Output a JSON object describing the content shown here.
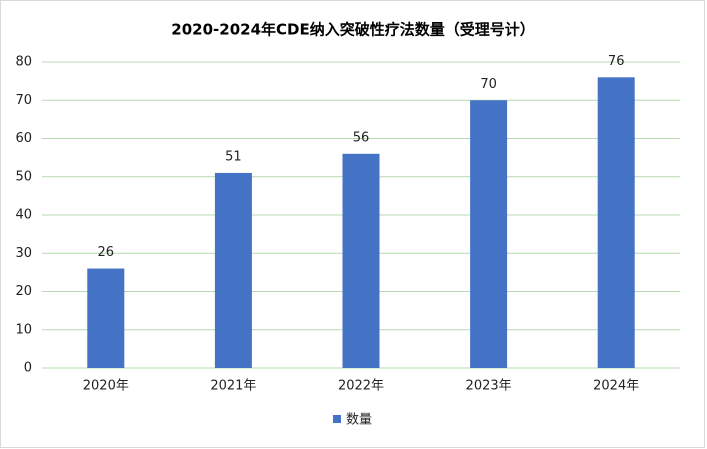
{
  "chart_data": {
    "type": "bar",
    "title": "2020-2024年CDE纳入突破性疗法数量（受理号计）",
    "categories": [
      "2020年",
      "2021年",
      "2022年",
      "2023年",
      "2024年"
    ],
    "series": [
      {
        "name": "数量",
        "color": "#4472c4",
        "values": [
          26,
          51,
          56,
          70,
          76
        ]
      }
    ],
    "ylim": [
      0,
      80
    ],
    "yticks": [
      0,
      10,
      20,
      30,
      40,
      50,
      60,
      70,
      80
    ],
    "grid": true,
    "legend": "bottom"
  }
}
